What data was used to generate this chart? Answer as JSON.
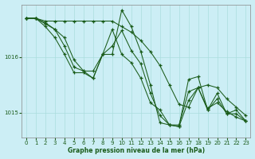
{
  "background_color": "#cceef5",
  "grid_color": "#aadddd",
  "line_color": "#1a5c1a",
  "marker_color": "#1a5c1a",
  "title": "Graphe pression niveau de la mer (hPa)",
  "xlim": [
    -0.5,
    23.5
  ],
  "ylim": [
    1014.55,
    1016.95
  ],
  "yticks": [
    1015.0,
    1016.0
  ],
  "xticks": [
    0,
    1,
    2,
    3,
    4,
    5,
    6,
    7,
    8,
    9,
    10,
    11,
    12,
    13,
    14,
    15,
    16,
    17,
    18,
    19,
    20,
    21,
    22,
    23
  ],
  "series": [
    [
      1016.7,
      1016.7,
      1016.65,
      1016.65,
      1016.65,
      1016.65,
      1016.65,
      1016.65,
      1016.65,
      1016.65,
      1016.55,
      1016.45,
      1016.3,
      1016.1,
      1015.85,
      1015.5,
      1015.15,
      1015.1,
      1015.45,
      1015.5,
      1015.45,
      1015.25,
      1015.1,
      1014.95
    ],
    [
      1016.7,
      1016.7,
      1016.6,
      1016.5,
      1016.35,
      1015.95,
      1015.75,
      1015.75,
      1016.05,
      1016.05,
      1016.85,
      1016.55,
      1016.1,
      1015.5,
      1014.82,
      1014.78,
      1014.75,
      1015.6,
      1015.65,
      1015.05,
      1015.35,
      1014.98,
      1015.05,
      1014.85
    ],
    [
      1016.7,
      1016.7,
      1016.55,
      1016.35,
      1016.05,
      1015.72,
      1015.72,
      1015.62,
      1016.05,
      1016.5,
      1016.05,
      1015.9,
      1015.62,
      1015.18,
      1015.05,
      1014.78,
      1014.78,
      1015.38,
      1015.45,
      1015.08,
      1015.18,
      1015.02,
      1014.92,
      1014.85
    ],
    [
      1016.7,
      1016.7,
      1016.62,
      1016.5,
      1016.2,
      1015.82,
      1015.75,
      1015.62,
      1016.05,
      1016.2,
      1016.48,
      1016.12,
      1015.88,
      1015.35,
      1014.95,
      1014.78,
      1014.75,
      1015.22,
      1015.45,
      1015.05,
      1015.25,
      1014.98,
      1014.98,
      1014.85
    ]
  ]
}
